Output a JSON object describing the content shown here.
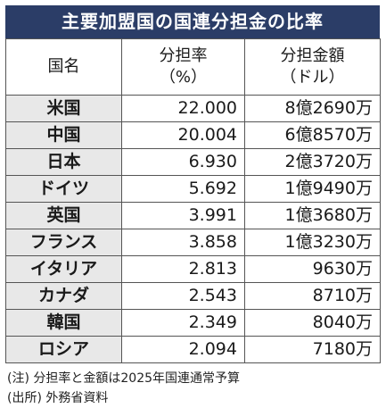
{
  "title": "主要加盟国の国連分担金の比率",
  "headers": {
    "country": "国名",
    "rate_line1": "分担率",
    "rate_line2": "（%）",
    "amount_line1": "分担金額",
    "amount_line2": "（ドル）"
  },
  "rows": [
    {
      "country": "米国",
      "rate": "22.000",
      "amount": "8億2690万"
    },
    {
      "country": "中国",
      "rate": "20.004",
      "amount": "6億8570万"
    },
    {
      "country": "日本",
      "rate": "6.930",
      "amount": "2億3720万"
    },
    {
      "country": "ドイツ",
      "rate": "5.692",
      "amount": "1億9490万"
    },
    {
      "country": "英国",
      "rate": "3.991",
      "amount": "1億3680万"
    },
    {
      "country": "フランス",
      "rate": "3.858",
      "amount": "1億3230万"
    },
    {
      "country": "イタリア",
      "rate": "2.813",
      "amount": "9630万"
    },
    {
      "country": "カナダ",
      "rate": "2.543",
      "amount": "8710万"
    },
    {
      "country": "韓国",
      "rate": "2.349",
      "amount": "8040万"
    },
    {
      "country": "ロシア",
      "rate": "2.094",
      "amount": "7180万"
    }
  ],
  "notes": {
    "note1": "(注) 分担率と金額は2025年国連通常予算",
    "note2": "(出所) 外務省資料"
  },
  "colors": {
    "title_bg": "#2b3d67",
    "country_bg": "#e8e8e8"
  }
}
